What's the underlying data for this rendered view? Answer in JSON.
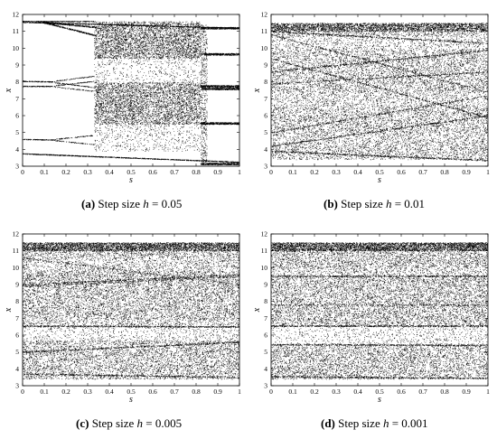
{
  "figure": {
    "panels": [
      {
        "id": "a",
        "caption_tag": "(a)",
        "caption_text": " Step size ",
        "caption_var": "h",
        "caption_value": " = 0.05"
      },
      {
        "id": "b",
        "caption_tag": "(b)",
        "caption_text": " Step size ",
        "caption_var": "h",
        "caption_value": " = 0.01"
      },
      {
        "id": "c",
        "caption_tag": "(c)",
        "caption_text": " Step size ",
        "caption_var": "h",
        "caption_value": " = 0.005"
      },
      {
        "id": "d",
        "caption_tag": "(d)",
        "caption_text": " Step size ",
        "caption_var": "h",
        "caption_value": " = 0.001"
      }
    ]
  },
  "chart_data": [
    {
      "type": "scatter",
      "panel": "a",
      "xlabel": "s",
      "ylabel": "x",
      "xlim": [
        0,
        1
      ],
      "ylim": [
        3,
        12
      ],
      "x_ticks": [
        "0",
        "0.1",
        "0.2",
        "0.3",
        "0.4",
        "0.5",
        "0.6",
        "0.7",
        "0.8",
        "0.9",
        "1"
      ],
      "y_ticks": [
        "3",
        "4",
        "5",
        "6",
        "7",
        "8",
        "9",
        "10",
        "11",
        "12"
      ],
      "color": "#000000",
      "description_bands": [
        {
          "s_range": [
            0,
            0.33
          ],
          "orbit_points": [
            11.6,
            8.0,
            7.6,
            4.4
          ]
        },
        {
          "s_range": [
            0.33,
            0.82
          ],
          "chaotic_band": [
            3.9,
            11.5
          ]
        },
        {
          "s_range": [
            0.82,
            1.0
          ],
          "orbit_points": [
            11.2,
            9.6,
            7.7,
            5.5,
            3.1
          ]
        }
      ]
    },
    {
      "type": "scatter",
      "panel": "b",
      "xlabel": "s",
      "ylabel": "x",
      "xlim": [
        0,
        1
      ],
      "ylim": [
        3,
        12
      ],
      "x_ticks": [
        "0",
        "0.1",
        "0.2",
        "0.3",
        "0.4",
        "0.5",
        "0.6",
        "0.7",
        "0.8",
        "0.9",
        "1"
      ],
      "y_ticks": [
        "3",
        "4",
        "5",
        "6",
        "7",
        "8",
        "9",
        "10",
        "11",
        "12"
      ],
      "color": "#000000",
      "description_bands": [
        {
          "s_range": [
            0,
            1
          ],
          "chaotic_band": [
            3.4,
            11.5
          ]
        }
      ]
    },
    {
      "type": "scatter",
      "panel": "c",
      "xlabel": "s",
      "ylabel": "x",
      "xlim": [
        0,
        1
      ],
      "ylim": [
        3,
        12
      ],
      "x_ticks": [
        "0",
        "0.1",
        "0.2",
        "0.3",
        "0.4",
        "0.5",
        "0.6",
        "0.7",
        "0.8",
        "0.9",
        "1"
      ],
      "y_ticks": [
        "3",
        "4",
        "5",
        "6",
        "7",
        "8",
        "9",
        "10",
        "11",
        "12"
      ],
      "color": "#000000",
      "description_bands": [
        {
          "s_range": [
            0,
            1
          ],
          "chaotic_band": [
            3.4,
            11.5
          ]
        }
      ]
    },
    {
      "type": "scatter",
      "panel": "d",
      "xlabel": "s",
      "ylabel": "x",
      "xlim": [
        0,
        1
      ],
      "ylim": [
        3,
        12
      ],
      "x_ticks": [
        "0",
        "0.1",
        "0.2",
        "0.3",
        "0.4",
        "0.5",
        "0.6",
        "0.7",
        "0.8",
        "0.9",
        "1"
      ],
      "y_ticks": [
        "3",
        "4",
        "5",
        "6",
        "7",
        "8",
        "9",
        "10",
        "11",
        "12"
      ],
      "color": "#000000",
      "description_bands": [
        {
          "s_range": [
            0,
            1
          ],
          "chaotic_band": [
            3.4,
            11.5
          ]
        }
      ]
    }
  ]
}
